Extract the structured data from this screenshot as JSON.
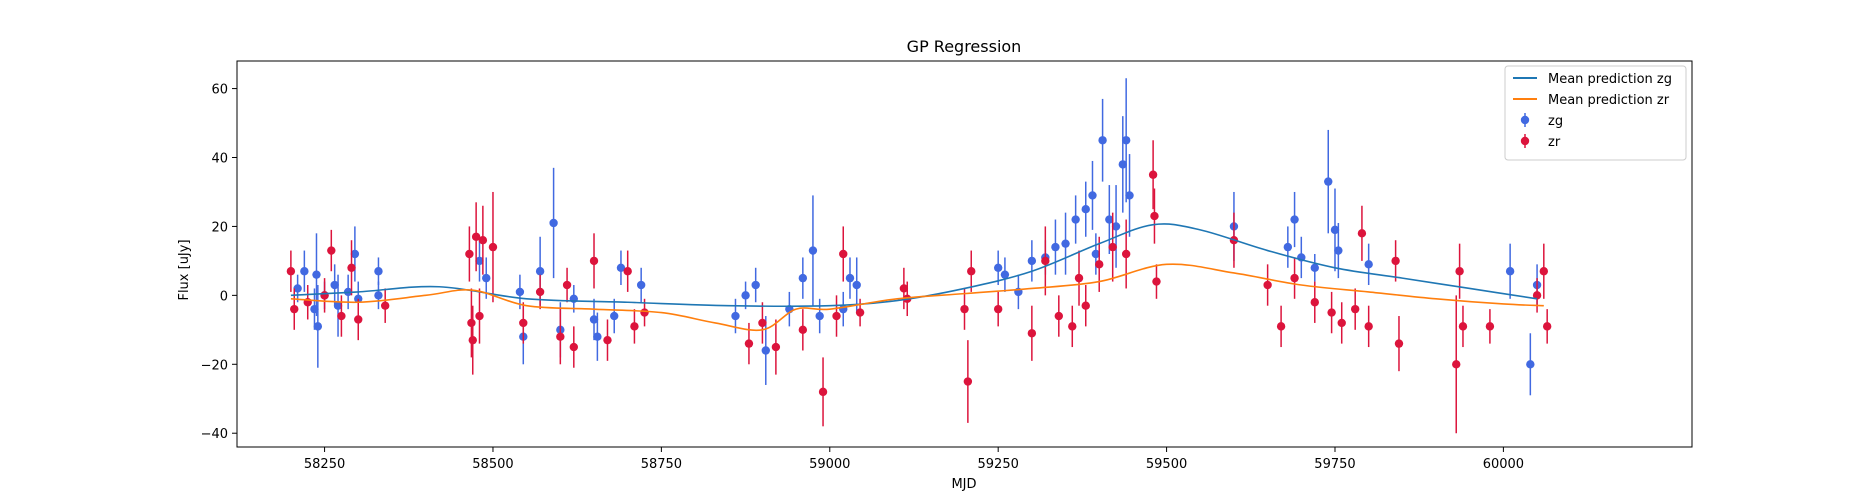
{
  "chart_data": {
    "type": "scatter",
    "title": "GP Regression",
    "xlabel": "MJD",
    "ylabel": "Flux [uJy]",
    "xlim": [
      58120,
      60280
    ],
    "ylim": [
      -44,
      68
    ],
    "xticks": [
      58250,
      58500,
      58750,
      59000,
      59250,
      59500,
      59750,
      60000
    ],
    "yticks": [
      -40,
      -20,
      0,
      20,
      40,
      60
    ],
    "legend_position": "top-right",
    "grid": false,
    "colors": {
      "zg_points": "#4169e1",
      "zr_points": "#dc143c",
      "zg_line": "#1f77b4",
      "zr_line": "#ff7f0e"
    },
    "legend": [
      {
        "label": "Mean prediction zg",
        "kind": "line",
        "color": "#1f77b4"
      },
      {
        "label": "Mean prediction zr",
        "kind": "line",
        "color": "#ff7f0e"
      },
      {
        "label": "zg",
        "kind": "errorbar",
        "color": "#4169e1"
      },
      {
        "label": "zr",
        "kind": "errorbar",
        "color": "#dc143c"
      }
    ],
    "series": [
      {
        "name": "Mean prediction zg",
        "kind": "line",
        "color": "#1f77b4",
        "x": [
          58200,
          58300,
          58420,
          58550,
          58700,
          58850,
          59000,
          59100,
          59200,
          59300,
          59400,
          59480,
          59550,
          59650,
          59750,
          59850,
          59950,
          60050
        ],
        "y": [
          0,
          1,
          2.5,
          -1,
          -2,
          -3,
          -3,
          -1.5,
          2,
          7,
          15,
          20.5,
          19,
          13,
          8,
          5,
          2,
          -1
        ]
      },
      {
        "name": "Mean prediction zr",
        "kind": "line",
        "color": "#ff7f0e",
        "x": [
          58200,
          58300,
          58400,
          58470,
          58550,
          58650,
          58750,
          58830,
          58900,
          58950,
          59000,
          59100,
          59200,
          59300,
          59400,
          59500,
          59600,
          59700,
          59800,
          59900,
          60000,
          60060
        ],
        "y": [
          -1,
          -2,
          0,
          1.5,
          -3,
          -4,
          -5,
          -8,
          -10,
          -4,
          -4,
          -1,
          0.5,
          2,
          4,
          9,
          6.5,
          3,
          1,
          -1,
          -2.5,
          -3
        ]
      },
      {
        "name": "zg",
        "kind": "errorbar",
        "color": "#4169e1",
        "points": [
          [
            58210,
            2,
            4
          ],
          [
            58220,
            7,
            6
          ],
          [
            58235,
            -4,
            6
          ],
          [
            58238,
            6,
            12
          ],
          [
            58240,
            -9,
            12
          ],
          [
            58250,
            0,
            4
          ],
          [
            58265,
            3,
            6
          ],
          [
            58270,
            -3,
            9
          ],
          [
            58285,
            1,
            5
          ],
          [
            58295,
            12,
            8
          ],
          [
            58300,
            -1,
            5
          ],
          [
            58330,
            7,
            4
          ],
          [
            58330,
            0,
            4
          ],
          [
            58480,
            10,
            6
          ],
          [
            58490,
            5,
            6
          ],
          [
            58540,
            1,
            5
          ],
          [
            58545,
            -12,
            8
          ],
          [
            58570,
            7,
            10
          ],
          [
            58590,
            21,
            16
          ],
          [
            58600,
            -10,
            8
          ],
          [
            58620,
            -1,
            4
          ],
          [
            58650,
            -7,
            6
          ],
          [
            58655,
            -12,
            7
          ],
          [
            58680,
            -6,
            5
          ],
          [
            58690,
            8,
            5
          ],
          [
            58720,
            3,
            5
          ],
          [
            58860,
            -6,
            5
          ],
          [
            58875,
            0,
            4
          ],
          [
            58890,
            3,
            5
          ],
          [
            58905,
            -16,
            10
          ],
          [
            58940,
            -4,
            5
          ],
          [
            58960,
            5,
            6
          ],
          [
            58975,
            13,
            16
          ],
          [
            58985,
            -6,
            5
          ],
          [
            59020,
            -4,
            5
          ],
          [
            59030,
            5,
            6
          ],
          [
            59040,
            3,
            8
          ],
          [
            59250,
            8,
            5
          ],
          [
            59260,
            6,
            5
          ],
          [
            59280,
            1,
            5
          ],
          [
            59300,
            10,
            6
          ],
          [
            59320,
            11,
            5
          ],
          [
            59335,
            14,
            8
          ],
          [
            59350,
            15,
            9
          ],
          [
            59365,
            22,
            7
          ],
          [
            59380,
            25,
            8
          ],
          [
            59390,
            29,
            10
          ],
          [
            59395,
            12,
            6
          ],
          [
            59405,
            45,
            12
          ],
          [
            59415,
            22,
            10
          ],
          [
            59425,
            20,
            12
          ],
          [
            59435,
            38,
            14
          ],
          [
            59440,
            45,
            18
          ],
          [
            59445,
            29,
            12
          ],
          [
            59600,
            20,
            10
          ],
          [
            59680,
            14,
            6
          ],
          [
            59690,
            22,
            8
          ],
          [
            59700,
            11,
            6
          ],
          [
            59720,
            8,
            4
          ],
          [
            59740,
            33,
            15
          ],
          [
            59750,
            19,
            12
          ],
          [
            59755,
            13,
            8
          ],
          [
            59800,
            9,
            6
          ],
          [
            60010,
            7,
            8
          ],
          [
            60040,
            -20,
            9
          ],
          [
            60050,
            3,
            6
          ]
        ]
      },
      {
        "name": "zr",
        "kind": "errorbar",
        "color": "#dc143c",
        "points": [
          [
            58200,
            7,
            6
          ],
          [
            58205,
            -4,
            6
          ],
          [
            58225,
            -2,
            5
          ],
          [
            58250,
            0,
            5
          ],
          [
            58260,
            13,
            6
          ],
          [
            58275,
            -6,
            6
          ],
          [
            58290,
            8,
            8
          ],
          [
            58300,
            -7,
            6
          ],
          [
            58340,
            -3,
            5
          ],
          [
            58465,
            12,
            8
          ],
          [
            58468,
            -8,
            10
          ],
          [
            58470,
            -13,
            10
          ],
          [
            58475,
            17,
            10
          ],
          [
            58480,
            -6,
            8
          ],
          [
            58485,
            16,
            10
          ],
          [
            58500,
            14,
            16
          ],
          [
            58545,
            -8,
            6
          ],
          [
            58570,
            1,
            5
          ],
          [
            58600,
            -12,
            8
          ],
          [
            58610,
            3,
            5
          ],
          [
            58620,
            -15,
            6
          ],
          [
            58650,
            10,
            8
          ],
          [
            58670,
            -13,
            6
          ],
          [
            58700,
            7,
            6
          ],
          [
            58710,
            -9,
            5
          ],
          [
            58725,
            -5,
            4
          ],
          [
            58880,
            -14,
            6
          ],
          [
            58900,
            -8,
            6
          ],
          [
            58920,
            -15,
            8
          ],
          [
            58960,
            -10,
            6
          ],
          [
            58990,
            -28,
            10
          ],
          [
            59010,
            -6,
            6
          ],
          [
            59020,
            12,
            8
          ],
          [
            59045,
            -5,
            4
          ],
          [
            59110,
            2,
            6
          ],
          [
            59115,
            -1,
            5
          ],
          [
            59200,
            -4,
            6
          ],
          [
            59205,
            -25,
            12
          ],
          [
            59210,
            7,
            6
          ],
          [
            59250,
            -4,
            5
          ],
          [
            59300,
            -11,
            8
          ],
          [
            59320,
            10,
            10
          ],
          [
            59340,
            -6,
            6
          ],
          [
            59360,
            -9,
            6
          ],
          [
            59370,
            5,
            8
          ],
          [
            59380,
            -3,
            6
          ],
          [
            59400,
            9,
            8
          ],
          [
            59420,
            14,
            10
          ],
          [
            59440,
            12,
            10
          ],
          [
            59480,
            35,
            10
          ],
          [
            59482,
            23,
            8
          ],
          [
            59485,
            4,
            5
          ],
          [
            59600,
            16,
            8
          ],
          [
            59650,
            3,
            6
          ],
          [
            59670,
            -9,
            6
          ],
          [
            59690,
            5,
            6
          ],
          [
            59720,
            -2,
            6
          ],
          [
            59745,
            -5,
            6
          ],
          [
            59760,
            -8,
            6
          ],
          [
            59780,
            -4,
            6
          ],
          [
            59790,
            18,
            8
          ],
          [
            59800,
            -9,
            6
          ],
          [
            59840,
            10,
            6
          ],
          [
            59845,
            -14,
            8
          ],
          [
            59930,
            -20,
            20
          ],
          [
            59935,
            7,
            8
          ],
          [
            59940,
            -9,
            6
          ],
          [
            59980,
            -9,
            5
          ],
          [
            60050,
            0,
            5
          ],
          [
            60060,
            7,
            8
          ],
          [
            60065,
            -9,
            5
          ]
        ]
      }
    ]
  }
}
